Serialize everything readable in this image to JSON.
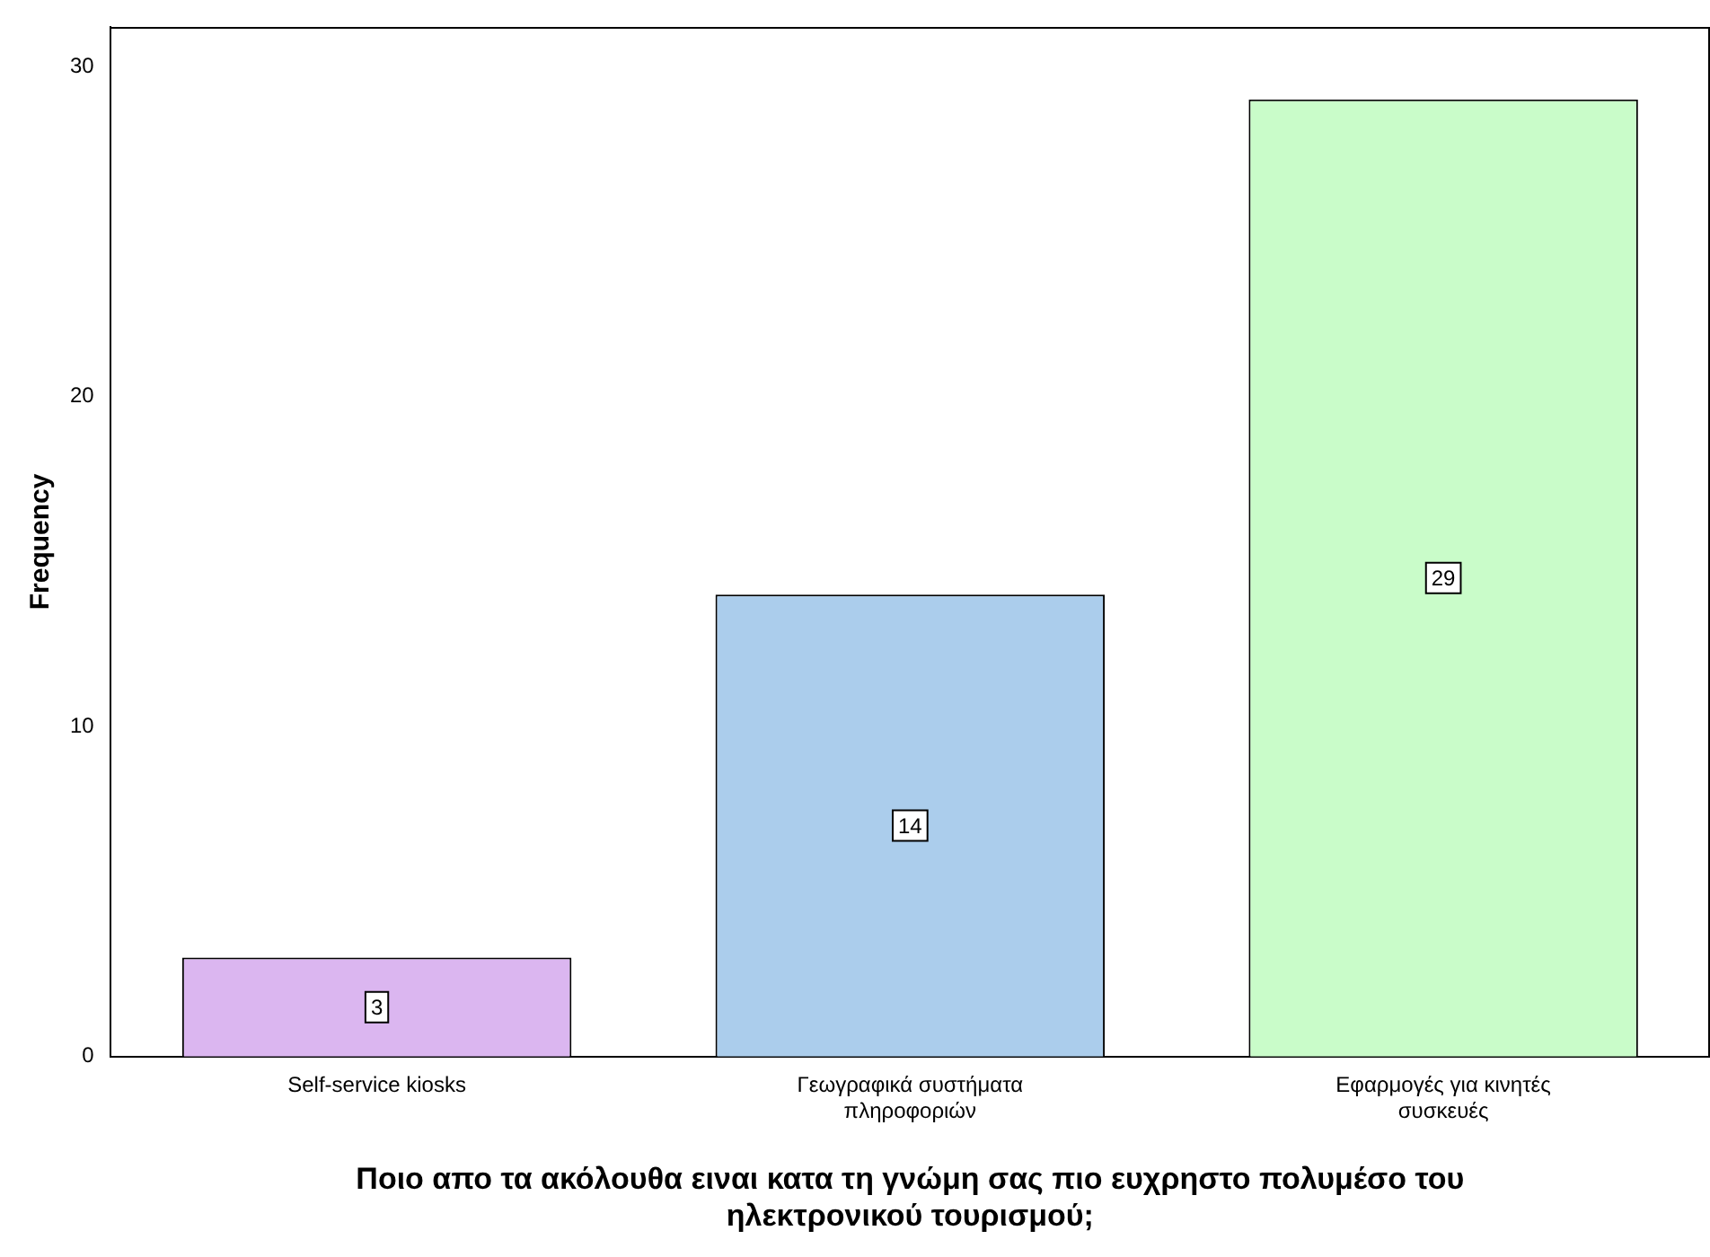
{
  "chart_data": {
    "type": "bar",
    "xlabel": "Ποιο απο τα ακόλουθα ειναι κατα τη γνώμη σας πιο ευχρηστο πολυμέσο του ηλεκτρονικού τουρισμού;",
    "ylabel": "Frequency",
    "categories": [
      "Self-service kiosks",
      "Γεωγραφικά συστήματα πληροφοριών",
      "Εφαρμογές για κινητές συσκευές"
    ],
    "values": [
      3,
      14,
      29
    ],
    "colors": [
      "#dbb6f0",
      "#abcdec",
      "#c9fcc9"
    ],
    "ylim": [
      0,
      31.2
    ],
    "yticks": [
      0,
      10,
      20,
      30
    ],
    "grid": false,
    "legend": false,
    "data_labels": true
  }
}
